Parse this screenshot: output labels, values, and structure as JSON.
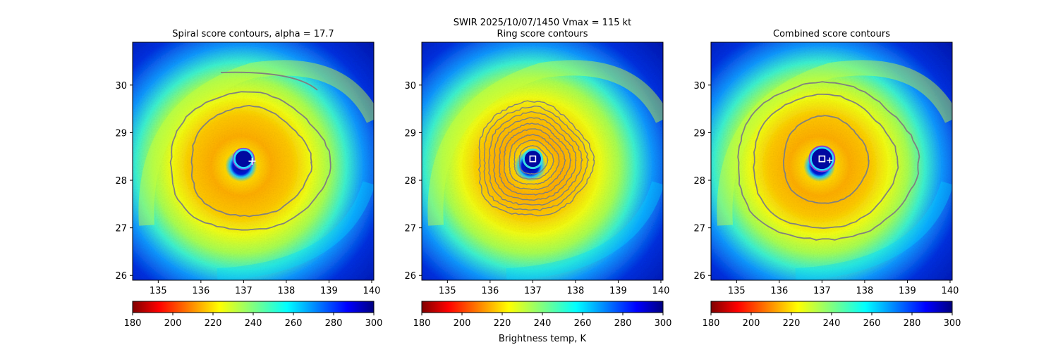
{
  "figure": {
    "suptitle_line1": "SWIR  2025/10/07/1450    Vmax = 115 kt",
    "colorbar_label": "Brightness temp, K"
  },
  "colors": {
    "contour_line": "#808080",
    "center_marker": "#ffffff",
    "eye_ring": "#8a3fd1",
    "ring_inner": "#40e0d0"
  },
  "chart_data": [
    {
      "type": "heatmap",
      "title": "Spiral score contours, alpha = 17.7",
      "xlim": [
        134.4,
        140.05
      ],
      "ylim": [
        25.9,
        30.9
      ],
      "x_ticks": [
        135,
        136,
        137,
        138,
        139,
        140
      ],
      "y_ticks": [
        26,
        27,
        28,
        29,
        30
      ],
      "center_lon": 137.0,
      "center_lat": 28.45,
      "marker": {
        "type": "plus",
        "lon": 137.2,
        "lat": 28.4
      },
      "colorbar": {
        "min": 180,
        "max": 300,
        "ticks": [
          180,
          200,
          220,
          240,
          260,
          280,
          300
        ],
        "cmap": "jet_r"
      }
    },
    {
      "type": "heatmap",
      "title": "Ring score contours",
      "xlim": [
        134.4,
        140.05
      ],
      "ylim": [
        25.9,
        30.9
      ],
      "x_ticks": [
        135,
        136,
        137,
        138,
        139,
        140
      ],
      "y_ticks": [
        26,
        27,
        28,
        29,
        30
      ],
      "center_lon": 137.0,
      "center_lat": 28.45,
      "marker": {
        "type": "square",
        "lon": 137.0,
        "lat": 28.45
      },
      "colorbar": {
        "min": 180,
        "max": 300,
        "ticks": [
          180,
          200,
          220,
          240,
          260,
          280,
          300
        ],
        "cmap": "jet_r"
      }
    },
    {
      "type": "heatmap",
      "title": "Combined score contours",
      "xlim": [
        134.4,
        140.05
      ],
      "ylim": [
        25.9,
        30.9
      ],
      "x_ticks": [
        135,
        136,
        137,
        138,
        139,
        140
      ],
      "y_ticks": [
        26,
        27,
        28,
        29,
        30
      ],
      "center_lon": 137.0,
      "center_lat": 28.45,
      "marker": {
        "type": "square_plus",
        "lon": 137.0,
        "lat": 28.45
      },
      "colorbar": {
        "min": 180,
        "max": 300,
        "ticks": [
          180,
          200,
          220,
          240,
          260,
          280,
          300
        ],
        "cmap": "jet_r"
      }
    }
  ]
}
